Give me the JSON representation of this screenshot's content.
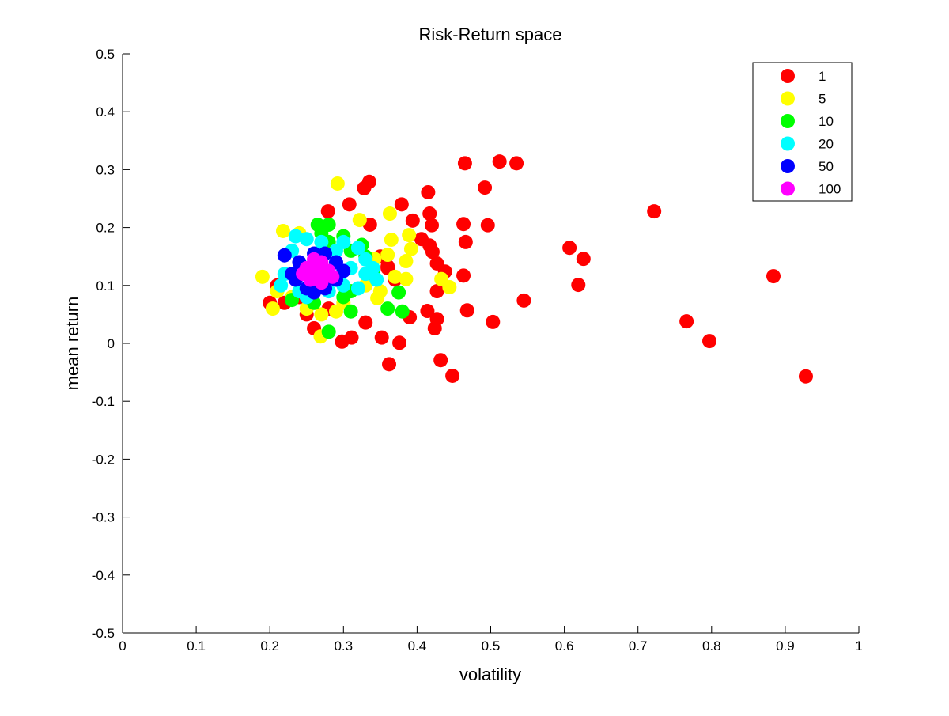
{
  "chart_data": {
    "type": "scatter",
    "title": "Risk-Return space",
    "xlabel": "volatility",
    "ylabel": "mean return",
    "xlim": [
      0,
      1
    ],
    "ylim": [
      -0.5,
      0.5
    ],
    "xticks": [
      "0",
      "0.1",
      "0.2",
      "0.3",
      "0.4",
      "0.5",
      "0.6",
      "0.7",
      "0.8",
      "0.9",
      "1"
    ],
    "yticks": [
      "0.5",
      "0.4",
      "0.3",
      "0.2",
      "0.1",
      "0",
      "-0.1",
      "-0.2",
      "-0.3",
      "-0.4",
      "-0.5"
    ],
    "grid": false,
    "legend_position": "top-right",
    "series": [
      {
        "name": "1",
        "color": "#ff0000",
        "points": [
          [
            0.465,
            0.311
          ],
          [
            0.512,
            0.314
          ],
          [
            0.535,
            0.311
          ],
          [
            0.492,
            0.269
          ],
          [
            0.335,
            0.279
          ],
          [
            0.328,
            0.268
          ],
          [
            0.415,
            0.261
          ],
          [
            0.308,
            0.24
          ],
          [
            0.379,
            0.24
          ],
          [
            0.279,
            0.228
          ],
          [
            0.417,
            0.224
          ],
          [
            0.394,
            0.212
          ],
          [
            0.336,
            0.205
          ],
          [
            0.463,
            0.206
          ],
          [
            0.496,
            0.204
          ],
          [
            0.42,
            0.204
          ],
          [
            0.466,
            0.175
          ],
          [
            0.406,
            0.18
          ],
          [
            0.417,
            0.169
          ],
          [
            0.421,
            0.158
          ],
          [
            0.427,
            0.138
          ],
          [
            0.438,
            0.124
          ],
          [
            0.36,
            0.133
          ],
          [
            0.463,
            0.117
          ],
          [
            0.427,
            0.09
          ],
          [
            0.545,
            0.074
          ],
          [
            0.468,
            0.057
          ],
          [
            0.414,
            0.056
          ],
          [
            0.427,
            0.042
          ],
          [
            0.424,
            0.026
          ],
          [
            0.39,
            0.045
          ],
          [
            0.503,
            0.037
          ],
          [
            0.33,
            0.036
          ],
          [
            0.26,
            0.026
          ],
          [
            0.298,
            0.003
          ],
          [
            0.311,
            0.01
          ],
          [
            0.352,
            0.01
          ],
          [
            0.376,
            0.001
          ],
          [
            0.362,
            -0.036
          ],
          [
            0.432,
            -0.029
          ],
          [
            0.448,
            -0.056
          ],
          [
            0.607,
            0.165
          ],
          [
            0.626,
            0.146
          ],
          [
            0.619,
            0.101
          ],
          [
            0.722,
            0.228
          ],
          [
            0.766,
            0.038
          ],
          [
            0.797,
            0.004
          ],
          [
            0.884,
            0.116
          ],
          [
            0.928,
            -0.057
          ],
          [
            0.21,
            0.1
          ],
          [
            0.22,
            0.07
          ],
          [
            0.24,
            0.08
          ],
          [
            0.35,
            0.15
          ],
          [
            0.36,
            0.13
          ],
          [
            0.37,
            0.11
          ],
          [
            0.25,
            0.05
          ],
          [
            0.28,
            0.06
          ],
          [
            0.2,
            0.07
          ]
        ]
      },
      {
        "name": "5",
        "color": "#ffff00",
        "points": [
          [
            0.292,
            0.276
          ],
          [
            0.363,
            0.224
          ],
          [
            0.322,
            0.213
          ],
          [
            0.389,
            0.187
          ],
          [
            0.365,
            0.179
          ],
          [
            0.392,
            0.163
          ],
          [
            0.36,
            0.153
          ],
          [
            0.342,
            0.146
          ],
          [
            0.385,
            0.142
          ],
          [
            0.433,
            0.111
          ],
          [
            0.444,
            0.097
          ],
          [
            0.385,
            0.111
          ],
          [
            0.37,
            0.115
          ],
          [
            0.19,
            0.115
          ],
          [
            0.204,
            0.06
          ],
          [
            0.218,
            0.194
          ],
          [
            0.269,
            0.012
          ],
          [
            0.346,
            0.078
          ],
          [
            0.25,
            0.06
          ],
          [
            0.27,
            0.05
          ],
          [
            0.29,
            0.055
          ],
          [
            0.3,
            0.07
          ],
          [
            0.23,
            0.08
          ],
          [
            0.21,
            0.09
          ],
          [
            0.33,
            0.1
          ],
          [
            0.26,
            0.07
          ],
          [
            0.24,
            0.19
          ],
          [
            0.35,
            0.09
          ]
        ]
      },
      {
        "name": "10",
        "color": "#00ff00",
        "points": [
          [
            0.265,
            0.205
          ],
          [
            0.28,
            0.205
          ],
          [
            0.27,
            0.19
          ],
          [
            0.325,
            0.17
          ],
          [
            0.3,
            0.185
          ],
          [
            0.31,
            0.16
          ],
          [
            0.33,
            0.15
          ],
          [
            0.375,
            0.088
          ],
          [
            0.36,
            0.06
          ],
          [
            0.38,
            0.055
          ],
          [
            0.28,
            0.02
          ],
          [
            0.31,
            0.055
          ],
          [
            0.26,
            0.07
          ],
          [
            0.3,
            0.08
          ],
          [
            0.23,
            0.075
          ],
          [
            0.34,
            0.12
          ],
          [
            0.28,
            0.175
          ],
          [
            0.31,
            0.09
          ]
        ]
      },
      {
        "name": "20",
        "color": "#00ffff",
        "points": [
          [
            0.235,
            0.185
          ],
          [
            0.25,
            0.18
          ],
          [
            0.27,
            0.175
          ],
          [
            0.3,
            0.175
          ],
          [
            0.32,
            0.165
          ],
          [
            0.33,
            0.145
          ],
          [
            0.34,
            0.13
          ],
          [
            0.345,
            0.11
          ],
          [
            0.22,
            0.12
          ],
          [
            0.215,
            0.1
          ],
          [
            0.24,
            0.09
          ],
          [
            0.28,
            0.09
          ],
          [
            0.3,
            0.1
          ],
          [
            0.32,
            0.095
          ],
          [
            0.25,
            0.08
          ],
          [
            0.29,
            0.16
          ],
          [
            0.31,
            0.13
          ],
          [
            0.33,
            0.12
          ],
          [
            0.23,
            0.16
          ]
        ]
      },
      {
        "name": "50",
        "color": "#0000ff",
        "points": [
          [
            0.22,
            0.152
          ],
          [
            0.235,
            0.11
          ],
          [
            0.25,
            0.095
          ],
          [
            0.26,
            0.088
          ],
          [
            0.275,
            0.095
          ],
          [
            0.29,
            0.11
          ],
          [
            0.29,
            0.14
          ],
          [
            0.275,
            0.155
          ],
          [
            0.26,
            0.155
          ],
          [
            0.24,
            0.14
          ],
          [
            0.23,
            0.12
          ],
          [
            0.3,
            0.125
          ]
        ]
      },
      {
        "name": "100",
        "color": "#ff00ff",
        "points": [
          [
            0.25,
            0.13
          ],
          [
            0.26,
            0.145
          ],
          [
            0.27,
            0.14
          ],
          [
            0.28,
            0.125
          ],
          [
            0.265,
            0.12
          ],
          [
            0.255,
            0.11
          ],
          [
            0.27,
            0.105
          ],
          [
            0.245,
            0.12
          ],
          [
            0.285,
            0.115
          ],
          [
            0.26,
            0.13
          ]
        ]
      }
    ]
  }
}
